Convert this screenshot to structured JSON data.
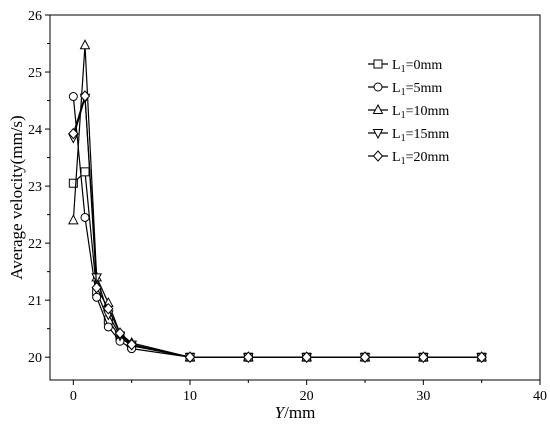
{
  "chart_data": {
    "type": "line",
    "xlabel": "Y/mm",
    "ylabel": "Average velocity(mm/s)",
    "xlim": [
      -2,
      40
    ],
    "ylim": [
      19.6,
      26
    ],
    "xticks": [
      0,
      10,
      20,
      30,
      40
    ],
    "yticks": [
      20,
      21,
      22,
      23,
      24,
      25,
      26
    ],
    "grid": false,
    "legend_position": "top-right",
    "series": [
      {
        "name": "L1=0mm",
        "marker": "square",
        "x": [
          0,
          1,
          2,
          3,
          4,
          5,
          10,
          15,
          20,
          25,
          30,
          35
        ],
        "y": [
          23.05,
          23.25,
          21.15,
          20.65,
          20.35,
          20.2,
          20.0,
          20.0,
          20.0,
          20.0,
          20.0,
          20.0
        ]
      },
      {
        "name": "L1=5mm",
        "marker": "circle",
        "x": [
          0,
          1,
          2,
          3,
          4,
          5,
          10,
          15,
          20,
          25,
          30,
          35
        ],
        "y": [
          24.57,
          22.45,
          21.05,
          20.53,
          20.28,
          20.15,
          20.0,
          20.0,
          20.0,
          20.0,
          20.0,
          20.0
        ]
      },
      {
        "name": "L1=10mm",
        "marker": "triangle-up",
        "x": [
          0,
          1,
          2,
          3,
          4,
          5,
          10,
          15,
          20,
          25,
          30,
          35
        ],
        "y": [
          22.4,
          25.47,
          21.4,
          20.95,
          20.42,
          20.25,
          20.0,
          20.0,
          20.0,
          20.0,
          20.0,
          20.0
        ]
      },
      {
        "name": "L1=15mm",
        "marker": "triangle-down",
        "x": [
          0,
          1,
          2,
          3,
          4,
          5,
          10,
          15,
          20,
          25,
          30,
          35
        ],
        "y": [
          23.85,
          24.55,
          21.4,
          20.75,
          20.38,
          20.22,
          20.0,
          20.0,
          20.0,
          20.0,
          20.0,
          20.0
        ]
      },
      {
        "name": "L1=20mm",
        "marker": "diamond",
        "x": [
          0,
          1,
          2,
          3,
          4,
          5,
          10,
          15,
          20,
          25,
          30,
          35
        ],
        "y": [
          23.92,
          24.58,
          21.22,
          20.85,
          20.42,
          20.22,
          20.0,
          20.0,
          20.0,
          20.0,
          20.0,
          20.0
        ]
      }
    ]
  }
}
